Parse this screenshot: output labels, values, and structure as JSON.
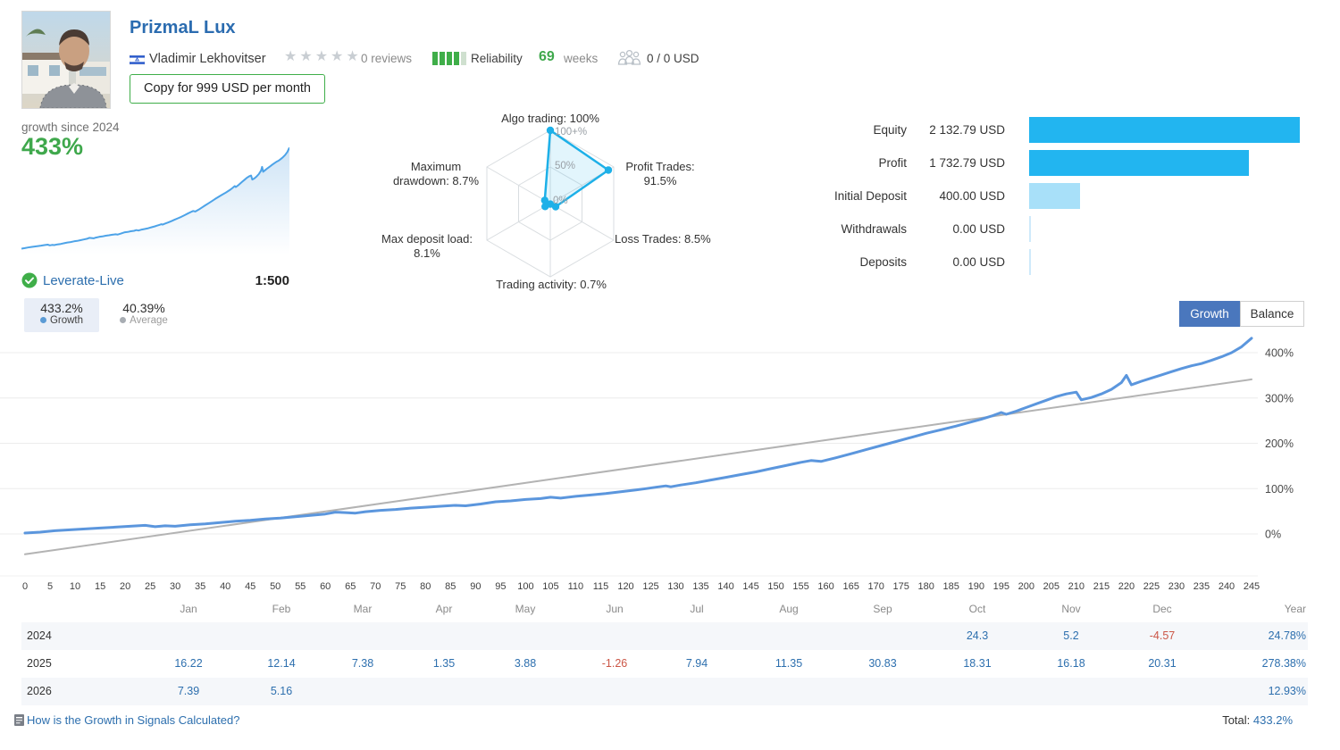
{
  "header": {
    "title": "PrizmaL Lux",
    "author": "Vladimir Lekhovitser",
    "stars": "★★★★★",
    "reviews": "0 reviews",
    "reliability_label": "Reliability",
    "weeks_value": "69",
    "weeks_label": "weeks",
    "subscribers": "0 / 0 USD",
    "copy_button": "Copy for 999 USD per month"
  },
  "growth_summary": {
    "caption": "growth since 2024",
    "value": "433%",
    "account": "Leverate-Live",
    "leverage": "1:500",
    "growth_tab": {
      "value": "433.2%",
      "label": "Growth"
    },
    "average_tab": {
      "value": "40.39%",
      "label": "Average"
    }
  },
  "chart_controls": {
    "growth": "Growth",
    "balance": "Balance"
  },
  "colors": {
    "accent_green": "#3fa84c",
    "title_blue": "#2b6cb0",
    "link_blue": "#2d6fae",
    "bar_cyan": "#22b5f0",
    "bar_light": "#a8e0f9",
    "radar_blue": "#1db0e8",
    "growth_line": "#5b96dd",
    "average_line": "#b3b3b3",
    "negative_red": "#cb5646"
  },
  "chart_data": [
    {
      "type": "radar",
      "name": "signal-quality-radar",
      "axes": [
        "Algo trading",
        "Profit Trades",
        "Loss Trades",
        "Trading activity",
        "Max deposit load",
        "Maximum drawdown"
      ],
      "label_lines": [
        [
          "Algo trading: 100%"
        ],
        [
          "Profit Trades:",
          "91.5%"
        ],
        [
          "Loss Trades: 8.5%"
        ],
        [
          "Trading activity: 0.7%"
        ],
        [
          "Max deposit load:",
          "8.1%"
        ],
        [
          "Maximum",
          "drawdown: 8.7%"
        ]
      ],
      "values": [
        100,
        91.5,
        8.5,
        0.7,
        8.1,
        8.7
      ],
      "max": 100,
      "ring_labels": [
        "100+%",
        "50%",
        "0%"
      ]
    },
    {
      "type": "line",
      "name": "growth-chart",
      "title": "Growth",
      "xlim": [
        0,
        245
      ],
      "ylim": [
        -90,
        480
      ],
      "ytick_values": [
        0,
        100,
        200,
        300,
        400
      ],
      "yticks": [
        "0%",
        "100%",
        "200%",
        "300%",
        "400%"
      ],
      "xticks": [
        0,
        5,
        10,
        15,
        20,
        25,
        30,
        35,
        40,
        45,
        50,
        55,
        60,
        65,
        70,
        75,
        80,
        85,
        90,
        95,
        100,
        105,
        110,
        115,
        120,
        125,
        130,
        135,
        140,
        145,
        150,
        155,
        160,
        165,
        170,
        175,
        180,
        185,
        190,
        195,
        200,
        205,
        210,
        215,
        220,
        225,
        230,
        235,
        240,
        245
      ],
      "series": [
        {
          "name": "Growth",
          "points": [
            [
              0,
              2
            ],
            [
              3,
              4
            ],
            [
              6,
              7
            ],
            [
              9,
              9
            ],
            [
              12,
              11
            ],
            [
              15,
              13
            ],
            [
              18,
              15
            ],
            [
              21,
              17
            ],
            [
              24,
              19
            ],
            [
              26,
              16
            ],
            [
              28,
              18
            ],
            [
              30,
              17
            ],
            [
              33,
              20
            ],
            [
              36,
              22
            ],
            [
              39,
              25
            ],
            [
              42,
              28
            ],
            [
              45,
              30
            ],
            [
              48,
              33
            ],
            [
              51,
              35
            ],
            [
              54,
              38
            ],
            [
              57,
              41
            ],
            [
              60,
              44
            ],
            [
              62,
              48
            ],
            [
              64,
              47
            ],
            [
              66,
              46
            ],
            [
              68,
              49
            ],
            [
              71,
              52
            ],
            [
              74,
              54
            ],
            [
              77,
              57
            ],
            [
              80,
              59
            ],
            [
              83,
              61
            ],
            [
              86,
              63
            ],
            [
              88,
              62
            ],
            [
              91,
              66
            ],
            [
              94,
              71
            ],
            [
              97,
              73
            ],
            [
              100,
              76
            ],
            [
              103,
              78
            ],
            [
              105,
              81
            ],
            [
              107,
              79
            ],
            [
              110,
              83
            ],
            [
              113,
              86
            ],
            [
              116,
              89
            ],
            [
              119,
              93
            ],
            [
              122,
              97
            ],
            [
              124,
              100
            ],
            [
              126,
              103
            ],
            [
              128,
              106
            ],
            [
              129,
              104
            ],
            [
              131,
              108
            ],
            [
              134,
              113
            ],
            [
              137,
              119
            ],
            [
              140,
              125
            ],
            [
              143,
              131
            ],
            [
              146,
              137
            ],
            [
              149,
              144
            ],
            [
              152,
              151
            ],
            [
              155,
              158
            ],
            [
              157,
              162
            ],
            [
              159,
              160
            ],
            [
              162,
              168
            ],
            [
              165,
              177
            ],
            [
              168,
              186
            ],
            [
              171,
              195
            ],
            [
              174,
              204
            ],
            [
              177,
              213
            ],
            [
              180,
              222
            ],
            [
              183,
              230
            ],
            [
              186,
              238
            ],
            [
              189,
              247
            ],
            [
              191,
              253
            ],
            [
              193,
              260
            ],
            [
              195,
              268
            ],
            [
              196,
              264
            ],
            [
              198,
              271
            ],
            [
              200,
              279
            ],
            [
              202,
              287
            ],
            [
              204,
              295
            ],
            [
              206,
              303
            ],
            [
              208,
              309
            ],
            [
              210,
              313
            ],
            [
              211,
              296
            ],
            [
              213,
              301
            ],
            [
              215,
              309
            ],
            [
              217,
              319
            ],
            [
              219,
              334
            ],
            [
              220,
              350
            ],
            [
              221,
              329
            ],
            [
              223,
              337
            ],
            [
              225,
              344
            ],
            [
              227,
              351
            ],
            [
              229,
              358
            ],
            [
              231,
              365
            ],
            [
              233,
              371
            ],
            [
              235,
              376
            ],
            [
              237,
              383
            ],
            [
              239,
              391
            ],
            [
              241,
              400
            ],
            [
              243,
              413
            ],
            [
              245,
              432
            ]
          ]
        },
        {
          "name": "Average",
          "points": [
            [
              0,
              -45
            ],
            [
              245,
              341
            ]
          ]
        }
      ]
    },
    {
      "type": "bar",
      "name": "account-summary-bars",
      "categories": [
        "Equity",
        "Profit",
        "Initial Deposit",
        "Withdrawals",
        "Deposits"
      ],
      "values": [
        2132.79,
        1732.79,
        400.0,
        0,
        0
      ],
      "display_values": [
        "2 132.79 USD",
        "1 732.79 USD",
        "400.00 USD",
        "0.00 USD",
        "0.00 USD"
      ],
      "bar_styles": [
        "solid",
        "solid",
        "light",
        "light",
        "light"
      ]
    },
    {
      "type": "table",
      "name": "monthly-growth-table",
      "columns": [
        "Jan",
        "Feb",
        "Mar",
        "Apr",
        "May",
        "Jun",
        "Jul",
        "Aug",
        "Sep",
        "Oct",
        "Nov",
        "Dec"
      ],
      "year_column": "Year",
      "rows": [
        {
          "year": "2024",
          "monthly": [
            "",
            "",
            "",
            "",
            "",
            "",
            "",
            "",
            "",
            "24.3",
            "5.2",
            "-4.57"
          ],
          "total": "24.78%"
        },
        {
          "year": "2025",
          "monthly": [
            "16.22",
            "12.14",
            "7.38",
            "1.35",
            "3.88",
            "-1.26",
            "7.94",
            "11.35",
            "30.83",
            "18.31",
            "16.18",
            "20.31"
          ],
          "total": "278.38%"
        },
        {
          "year": "2026",
          "monthly": [
            "7.39",
            "5.16",
            "",
            "",
            "",
            "",
            "",
            "",
            "",
            "",
            "",
            ""
          ],
          "total": "12.93%"
        }
      ]
    }
  ],
  "footer": {
    "link": "How is the Growth in Signals Calculated?",
    "total_label": "Total:",
    "total_value": "433.2%"
  }
}
